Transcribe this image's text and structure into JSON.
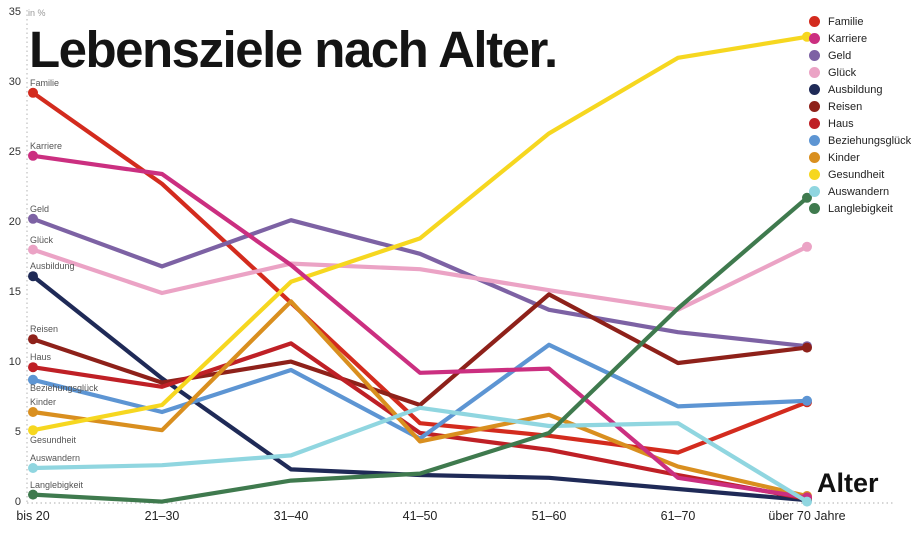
{
  "title": "Lebensziele nach Alter.",
  "y_axis_unit": "in %",
  "x_axis_title": "Alter",
  "chart_data": {
    "type": "line",
    "title": "Lebensziele nach Alter.",
    "xlabel": "Alter",
    "ylabel": "in %",
    "ylim": [
      0,
      35
    ],
    "y_ticks": [
      35,
      30,
      25,
      20,
      15,
      10,
      5,
      0
    ],
    "grid": "dotted axis lines only",
    "legend_position": "top-right",
    "categories": [
      "bis 20",
      "21–30",
      "31–40",
      "41–50",
      "51–60",
      "61–70",
      "über 70 Jahre"
    ],
    "series": [
      {
        "name": "Familie",
        "color": "#d32b1e",
        "values": [
          29.3,
          22.8,
          14.3,
          5.7,
          4.8,
          3.6,
          7.2
        ]
      },
      {
        "name": "Karriere",
        "color": "#cb2f80",
        "values": [
          24.8,
          23.5,
          17.0,
          9.3,
          9.6,
          1.8,
          0.4
        ]
      },
      {
        "name": "Geld",
        "color": "#7d62a4",
        "values": [
          20.3,
          16.9,
          20.2,
          17.8,
          13.8,
          12.2,
          11.2
        ]
      },
      {
        "name": "Glück",
        "color": "#eba3c5",
        "values": [
          18.1,
          15.0,
          17.1,
          16.7,
          15.2,
          13.8,
          18.3
        ]
      },
      {
        "name": "Ausbildung",
        "color": "#1f2a57",
        "values": [
          16.2,
          8.9,
          2.4,
          2.0,
          1.8,
          1.0,
          0.2
        ]
      },
      {
        "name": "Reisen",
        "color": "#8e211a",
        "values": [
          11.7,
          8.6,
          10.1,
          7.0,
          14.9,
          10.0,
          11.1
        ]
      },
      {
        "name": "Haus",
        "color": "#bf2026",
        "values": [
          9.7,
          8.3,
          11.4,
          5.0,
          3.8,
          2.0,
          0.3
        ]
      },
      {
        "name": "Beziehungsglück",
        "color": "#5d95d3",
        "values": [
          8.8,
          6.5,
          9.5,
          4.6,
          11.3,
          6.9,
          7.3
        ]
      },
      {
        "name": "Kinder",
        "color": "#d98f1f",
        "values": [
          6.5,
          5.2,
          14.4,
          4.4,
          6.3,
          2.6,
          0.5
        ]
      },
      {
        "name": "Gesundheit",
        "color": "#f6d720",
        "values": [
          5.2,
          7.0,
          15.8,
          18.9,
          26.4,
          31.8,
          33.3
        ]
      },
      {
        "name": "Auswandern",
        "color": "#90d6e0",
        "values": [
          2.5,
          2.7,
          3.4,
          6.8,
          5.5,
          5.7,
          0.1
        ]
      },
      {
        "name": "Langlebigkeit",
        "color": "#3f7a4e",
        "values": [
          0.6,
          0.1,
          1.6,
          2.1,
          5.0,
          13.9,
          21.8
        ]
      }
    ]
  }
}
